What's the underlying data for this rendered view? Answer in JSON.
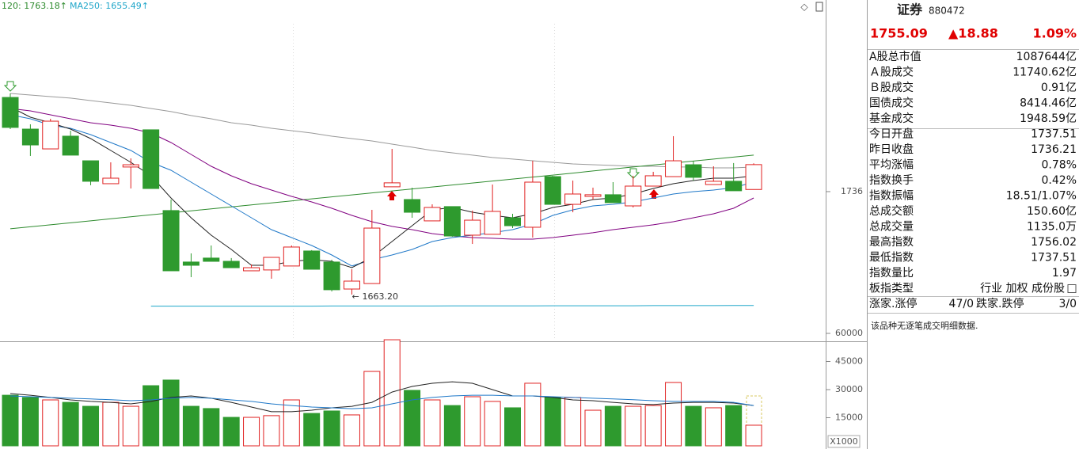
{
  "chart_data": [
    {
      "type": "candlestick",
      "legend": [
        {
          "label": "120: 1763.18↑",
          "color": "#2e8b2e"
        },
        {
          "label": "MA250: 1655.49↑",
          "color": "#1fa6c9"
        }
      ],
      "ylim": [
        1630.7,
        1871.5
      ],
      "yticks": [
        1736
      ],
      "up_color": "#e02020",
      "down_color": "#2e9a2e",
      "open": [
        1802.6,
        1780.2,
        1766.2,
        1775.2,
        1757.8,
        1741.6,
        1753.4,
        1779.7,
        1722.6,
        1686.2,
        1689.0,
        1686.7,
        1680.0,
        1680.6,
        1683.4,
        1694.0,
        1686.2,
        1667.1,
        1671.0,
        1739.4,
        1730.4,
        1715.3,
        1725.4,
        1705.2,
        1705.8,
        1717.5,
        1710.8,
        1746.6,
        1727.0,
        1732.6,
        1733.8,
        1725.9,
        1739.9,
        1746.6,
        1755.0,
        1741.0,
        1743.3,
        1737.51
      ],
      "high": [
        1805.4,
        1783.6,
        1787.5,
        1779.1,
        1757.8,
        1756.7,
        1759.5,
        1779.7,
        1730.4,
        1692.3,
        1697.9,
        1689.0,
        1684.5,
        1689.5,
        1697.9,
        1694.6,
        1687.8,
        1681.1,
        1723.1,
        1766.2,
        1738.8,
        1727.0,
        1725.4,
        1722.6,
        1741.0,
        1720.3,
        1757.8,
        1747.2,
        1743.8,
        1738.8,
        1742.7,
        1747.2,
        1750.0,
        1775.2,
        1757.8,
        1753.9,
        1756.2,
        1756.02
      ],
      "low": [
        1780.2,
        1761.2,
        1766.2,
        1761.8,
        1740.5,
        1741.6,
        1738.2,
        1738.2,
        1680.0,
        1675.5,
        1686.7,
        1682.2,
        1680.0,
        1674.4,
        1683.4,
        1681.1,
        1665.4,
        1663.2,
        1671.0,
        1739.4,
        1717.5,
        1715.3,
        1704.1,
        1699.0,
        1705.8,
        1710.2,
        1703.5,
        1727.0,
        1721.4,
        1730.4,
        1728.2,
        1724.8,
        1739.9,
        1746.6,
        1743.8,
        1741.0,
        1736.6,
        1737.51
      ],
      "close": [
        1781.4,
        1769.0,
        1785.8,
        1761.8,
        1743.3,
        1745.5,
        1755.0,
        1738.2,
        1680.0,
        1683.9,
        1686.7,
        1682.2,
        1682.2,
        1689.5,
        1696.8,
        1681.1,
        1666.6,
        1672.7,
        1710.2,
        1742.2,
        1721.4,
        1724.8,
        1704.6,
        1715.8,
        1722.0,
        1711.9,
        1742.7,
        1727.0,
        1734.3,
        1733.8,
        1728.2,
        1739.9,
        1747.2,
        1757.8,
        1746.1,
        1743.3,
        1736.6,
        1755.09
      ],
      "low_label": "1663.20",
      "series": [
        {
          "color": "#999999",
          "values": [
            1805.4,
            1804.3,
            1803.2,
            1802.1,
            1800.4,
            1798.7,
            1797.0,
            1794.8,
            1792.6,
            1789.8,
            1787.5,
            1784.7,
            1783.0,
            1780.8,
            1779.1,
            1777.4,
            1775.2,
            1773.5,
            1771.8,
            1769.6,
            1767.4,
            1765.1,
            1763.4,
            1761.8,
            1760.1,
            1759.0,
            1757.8,
            1756.7,
            1755.6,
            1755.0,
            1754.5,
            1753.9,
            1753.9,
            1753.4,
            1753.4,
            1752.8,
            1752.8,
            1753.4
          ]
        },
        {
          "color": "#2e8b2e",
          "values": [
            1709.7,
            1711.1,
            1712.5,
            1713.9,
            1715.3,
            1716.8,
            1718.2,
            1719.6,
            1721.0,
            1722.4,
            1723.8,
            1725.2,
            1726.6,
            1728.0,
            1729.4,
            1730.9,
            1732.3,
            1733.7,
            1735.1,
            1736.5,
            1737.9,
            1739.3,
            1740.7,
            1742.1,
            1743.5,
            1744.9,
            1746.3,
            1747.7,
            1749.1,
            1750.6,
            1752.0,
            1753.4,
            1754.8,
            1756.2,
            1757.6,
            1759.0,
            1760.4,
            1761.8
          ]
        },
        {
          "color": "#1fa6c9",
          "values": [
            null,
            null,
            null,
            null,
            null,
            null,
            null,
            1655.0,
            1655.0,
            1655.0,
            1655.0,
            1655.0,
            1655.0,
            1655.0,
            1655.0,
            1655.0,
            1655.1,
            1655.1,
            1655.1,
            1655.1,
            1655.1,
            1655.1,
            1655.2,
            1655.2,
            1655.2,
            1655.2,
            1655.2,
            1655.3,
            1655.3,
            1655.3,
            1655.3,
            1655.3,
            1655.4,
            1655.4,
            1655.4,
            1655.4,
            1655.5,
            1655.5
          ]
        },
        {
          "color": "#800080",
          "values": [
            1794.8,
            1793.1,
            1790.3,
            1787.5,
            1784.7,
            1783.0,
            1780.8,
            1777.4,
            1770.7,
            1762.3,
            1753.9,
            1747.2,
            1741.6,
            1737.1,
            1732.6,
            1728.7,
            1724.2,
            1719.2,
            1714.7,
            1711.4,
            1709.1,
            1706.3,
            1704.6,
            1703.5,
            1703.0,
            1702.4,
            1702.4,
            1703.5,
            1705.2,
            1706.9,
            1709.1,
            1710.8,
            1712.5,
            1714.7,
            1717.5,
            1720.3,
            1724.2,
            1731.5
          ]
        },
        {
          "color": "#1f78c8",
          "values": [
            1790.3,
            1787.5,
            1783.0,
            1780.8,
            1776.3,
            1770.7,
            1765.1,
            1756.7,
            1751.1,
            1742.7,
            1734.3,
            1725.9,
            1717.5,
            1709.1,
            1703.5,
            1697.9,
            1691.2,
            1683.4,
            1687.8,
            1691.2,
            1695.1,
            1700.7,
            1703.5,
            1705.2,
            1706.9,
            1709.1,
            1713.0,
            1719.2,
            1723.1,
            1725.9,
            1727.0,
            1728.7,
            1731.5,
            1734.3,
            1736.0,
            1737.1,
            1738.8,
            1742.7
          ]
        },
        {
          "color": "#222222",
          "values": [
            1795.9,
            1788.6,
            1784.7,
            1780.2,
            1773.5,
            1765.1,
            1756.7,
            1747.2,
            1731.5,
            1717.5,
            1705.2,
            1695.1,
            1683.9,
            1683.9,
            1686.7,
            1687.8,
            1686.7,
            1682.2,
            1689.5,
            1700.7,
            1711.9,
            1723.1,
            1724.8,
            1721.4,
            1719.2,
            1717.5,
            1720.3,
            1724.8,
            1727.0,
            1730.4,
            1731.5,
            1734.3,
            1738.2,
            1741.6,
            1743.8,
            1745.5,
            1745.5,
            1747.2
          ]
        }
      ]
    },
    {
      "type": "bar",
      "ylim": [
        0,
        60000
      ],
      "yticks": [
        15000,
        30000,
        45000,
        60000
      ],
      "unit_label": "X1000",
      "values": [
        27000,
        25800,
        24500,
        23200,
        21100,
        23200,
        21100,
        32100,
        35100,
        21100,
        19900,
        15200,
        15200,
        16100,
        24500,
        17300,
        18600,
        16500,
        39700,
        56600,
        29600,
        24500,
        21500,
        26200,
        23700,
        20300,
        33400,
        25800,
        25800,
        19000,
        21100,
        21100,
        21500,
        33800,
        21100,
        20300,
        21500,
        11000
      ],
      "series": [
        {
          "color": "#222222",
          "values": [
            27900,
            27000,
            25800,
            24500,
            23700,
            23200,
            22400,
            23700,
            25800,
            26600,
            25400,
            23200,
            20700,
            18200,
            18200,
            19000,
            20300,
            21100,
            23200,
            28700,
            31700,
            33400,
            34200,
            33400,
            30000,
            26600,
            26600,
            25800,
            24500,
            24100,
            23200,
            22400,
            22000,
            22800,
            23200,
            23200,
            22800,
            21500
          ]
        },
        {
          "color": "#1f78c8",
          "values": [
            26600,
            26200,
            25800,
            25400,
            25000,
            24600,
            24100,
            24500,
            25400,
            25800,
            25400,
            24500,
            23700,
            22400,
            21500,
            20700,
            20300,
            19800,
            20300,
            22400,
            24500,
            25800,
            26600,
            27000,
            27000,
            26600,
            26600,
            26200,
            25800,
            25400,
            25000,
            24600,
            24100,
            23700,
            23700,
            23700,
            23200,
            21500
          ]
        }
      ]
    }
  ],
  "panel": {
    "title": "证券",
    "code": "880472",
    "price": "1755.09",
    "change": "▲18.88",
    "percent": "1.09%",
    "rows": [
      {
        "label": "A股总市值",
        "value": "1087644亿"
      },
      {
        "label": "Ａ股成交",
        "value": "11740.62亿"
      },
      {
        "label": "Ｂ股成交",
        "value": "0.91亿"
      },
      {
        "label": "国债成交",
        "value": "8414.46亿"
      },
      {
        "label": "基金成交",
        "value": "1948.59亿"
      },
      {
        "label": "今日开盘",
        "value": "1737.51",
        "color": "#e00000"
      },
      {
        "label": "昨日收盘",
        "value": "1736.21"
      },
      {
        "label": "平均涨幅",
        "value": "0.78%",
        "color": "#e00000"
      },
      {
        "label": "指数换手",
        "value": "0.42%"
      },
      {
        "label": "指数振幅",
        "value": "18.51/1.07%"
      },
      {
        "label": "总成交额",
        "value": "150.60亿"
      },
      {
        "label": "总成交量",
        "value": "1135.0万"
      },
      {
        "label": "最高指数",
        "value": "1756.02",
        "color": "#e00000"
      },
      {
        "label": "最低指数",
        "value": "1737.51",
        "color": "#e00000"
      },
      {
        "label": "指数量比",
        "value": "1.97",
        "color": "#e00000"
      },
      {
        "label": "板指类型",
        "value": "行业 加权 成份股"
      }
    ],
    "breadth": {
      "up_label": "涨家.涨停",
      "up": "47/0",
      "down_label": "跌家.跌停",
      "down": "3/0"
    },
    "note": "该品种无逐笔成交明细数据."
  }
}
